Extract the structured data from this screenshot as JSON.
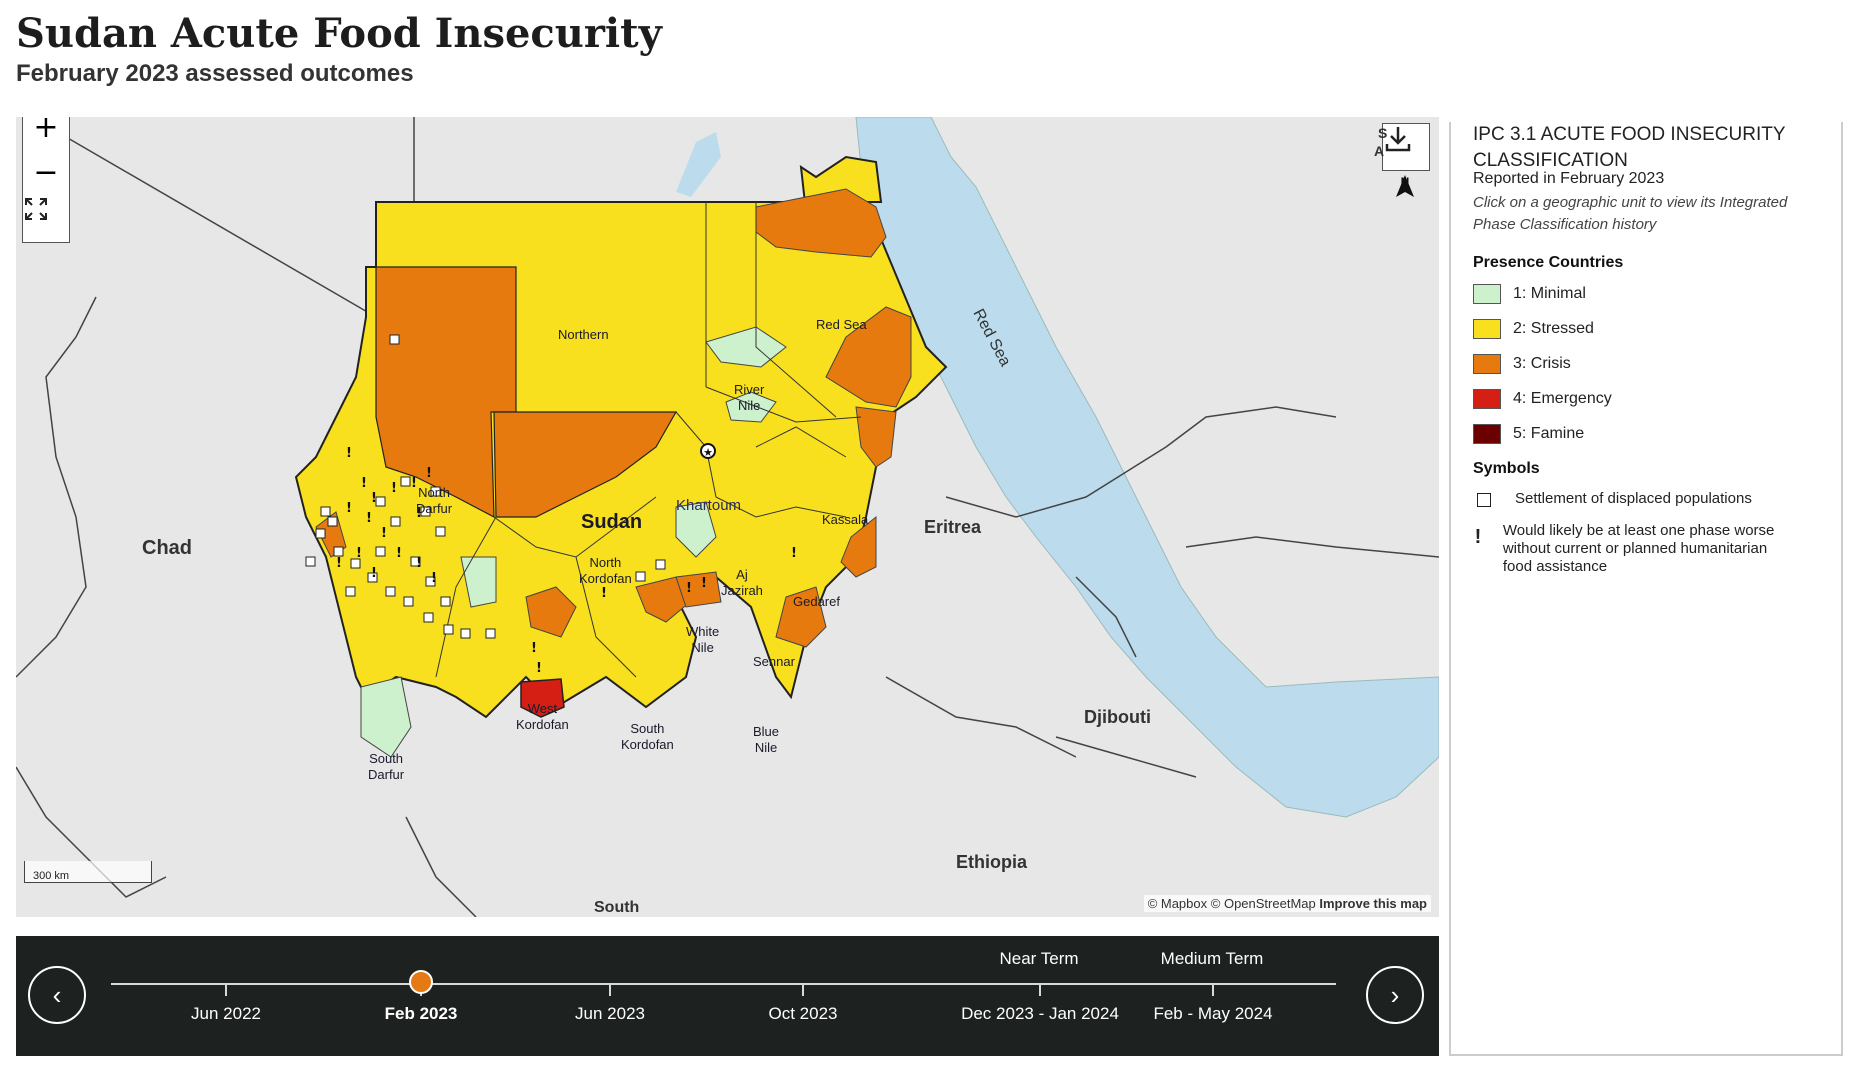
{
  "header": {
    "title": "Sudan Acute Food Insecurity",
    "subtitle": "February 2023 assessed outcomes"
  },
  "map": {
    "controls": {
      "zoom_in": "+",
      "zoom_out": "−"
    },
    "north_label": "N",
    "scale_label": "300 km",
    "attribution": {
      "mapbox": "© Mapbox",
      "osm": "© OpenStreetMap",
      "improve": "Improve this map"
    },
    "countries": {
      "chad": "Chad",
      "sudan": "Sudan",
      "eritrea": "Eritrea",
      "ethiopia": "Ethiopia",
      "djibouti": "Djibouti",
      "south": "South",
      "saudi_fragment": "S",
      "saudi_fragment2": "A"
    },
    "sea_label": "Red Sea",
    "capital": "Khartoum",
    "provinces": {
      "northern": "Northern",
      "river_nile": "River\nNile",
      "red_sea": "Red Sea",
      "north_darfur": "North\nDarfur",
      "north_kordofan": "North\nKordofan",
      "kassala": "Kassala",
      "aj_jazirah": "Aj\nJazirah",
      "gedaref": "Gedaref",
      "white_nile": "White\nNile",
      "sennar": "Sennar",
      "west_kordofan": "West\nKordofan",
      "south_kordofan": "South\nKordofan",
      "blue_nile": "Blue\nNile",
      "south_darfur": "South\nDarfur"
    },
    "colors": {
      "minimal": "#cdf1cd",
      "stressed": "#f8e01e",
      "crisis": "#e67a0f",
      "emergency": "#d51f14",
      "famine": "#6c0000",
      "water": "#bcdcee",
      "land": "#e7e7e7"
    }
  },
  "timeline": {
    "terms": {
      "near": "Near Term",
      "medium": "Medium Term"
    },
    "periods": [
      "Jun 2022",
      "Feb 2023",
      "Jun 2023",
      "Oct 2023",
      "Dec 2023 - Jan 2024",
      "Feb - May 2024"
    ],
    "selected": "Feb 2023",
    "prev": "‹",
    "next": "›"
  },
  "legend": {
    "title": "IPC 3.1 ACUTE FOOD INSECURITY CLASSIFICATION",
    "reported": "Reported in February 2023",
    "hint": "Click on a geographic unit to view its Integrated Phase Classification history",
    "presence_heading": "Presence Countries",
    "phases": [
      {
        "label": "1: Minimal",
        "color": "#cdf1cd"
      },
      {
        "label": "2: Stressed",
        "color": "#f8e01e"
      },
      {
        "label": "3: Crisis",
        "color": "#e67a0f"
      },
      {
        "label": "4: Emergency",
        "color": "#d51f14"
      },
      {
        "label": "5: Famine",
        "color": "#6c0000"
      }
    ],
    "symbols_heading": "Symbols",
    "symbols": [
      {
        "icon": "square",
        "label": "Settlement of displaced populations"
      },
      {
        "icon": "!",
        "label": "Would likely be at least one phase worse without current or planned humanitarian food assistance"
      }
    ]
  }
}
